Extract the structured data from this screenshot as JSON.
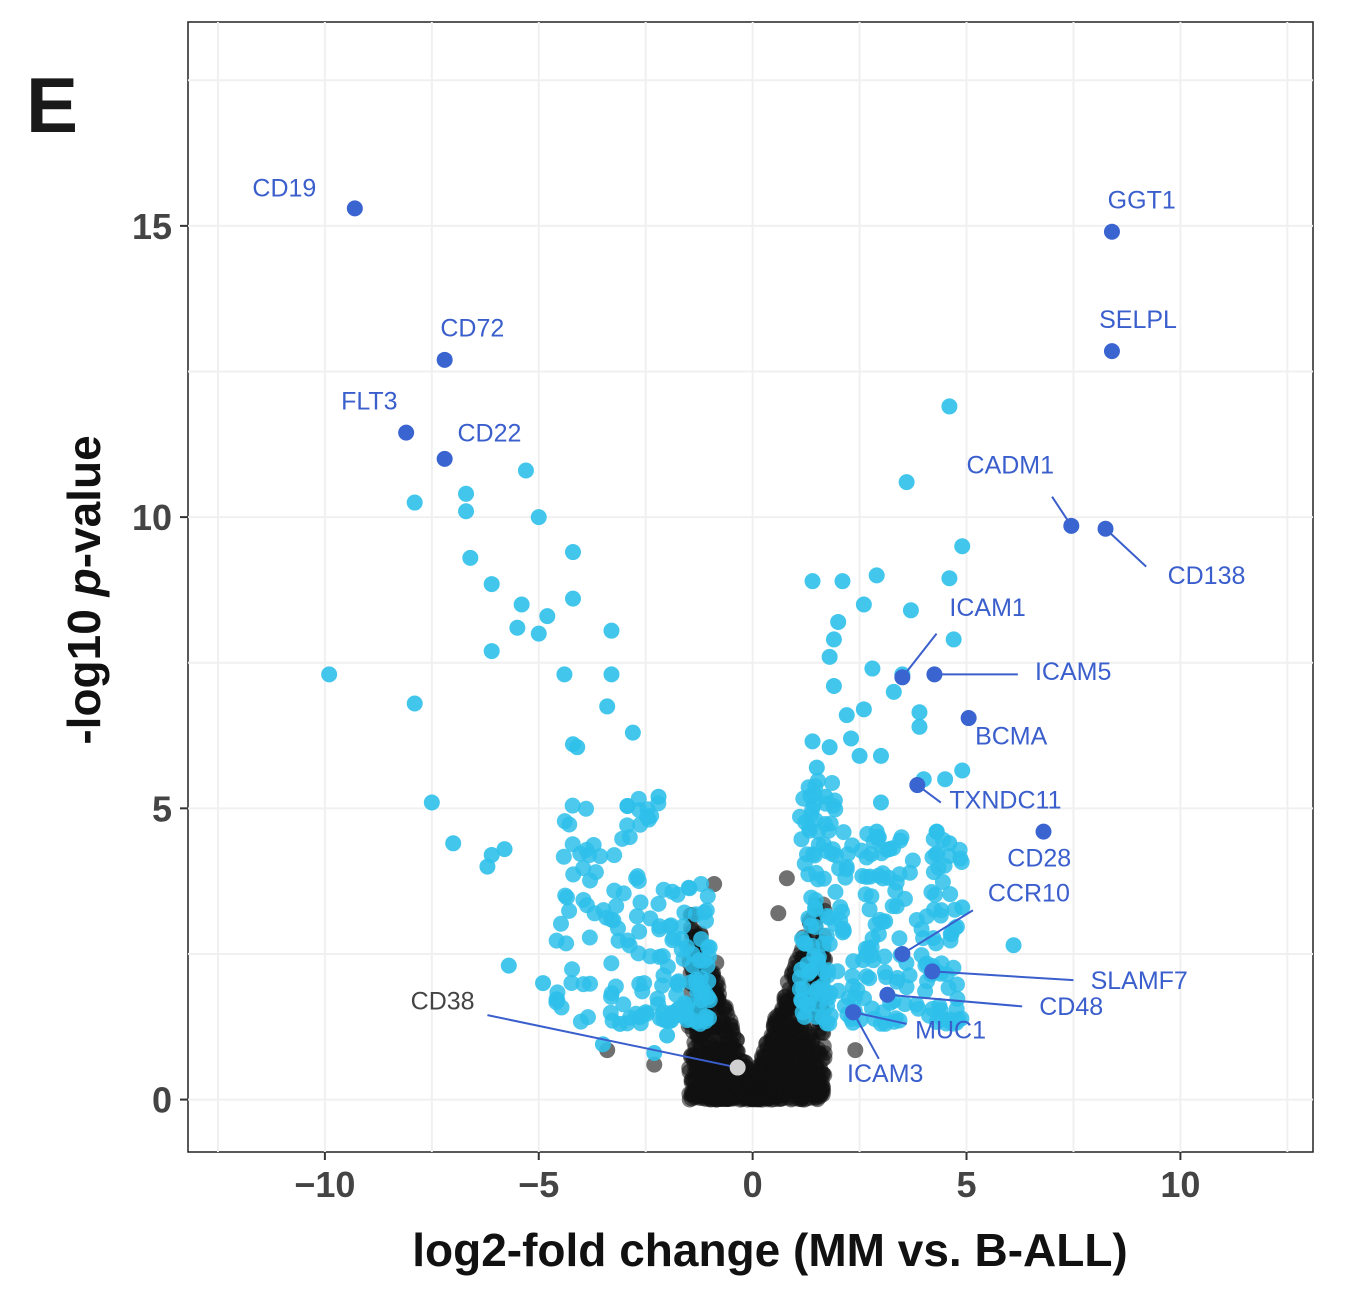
{
  "panel_label": "E",
  "colors": {
    "significant": "#2ec0ea",
    "highlight": "#3a64d0",
    "nonsignificant": "#111111",
    "cd38": "#d0d0d0",
    "label_highlight": "#3a5fcd",
    "label_cd38": "#444444",
    "grid": "#f0f0f0"
  },
  "chart_data": {
    "type": "scatter",
    "xlabel": "log2-fold change (MM vs. B-ALL)",
    "ylabel_parts": [
      "-log10 ",
      "p",
      "-value"
    ],
    "xlim": [
      -13.2,
      13.1
    ],
    "ylim": [
      -0.9,
      18.5
    ],
    "xticks": [
      -10,
      -5,
      0,
      5,
      10
    ],
    "xtick_labels": [
      "−10",
      "−5",
      "0",
      "5",
      "10"
    ],
    "yticks": [
      0,
      5,
      10,
      15
    ],
    "ytick_labels": [
      "0",
      "5",
      "10",
      "15"
    ],
    "grid": true,
    "labeled_genes": [
      {
        "name": "CD19",
        "x": -9.3,
        "y": 15.3,
        "label_x": -10.2,
        "label_y": 15.5,
        "anchor": "end",
        "leader": false
      },
      {
        "name": "CD72",
        "x": -7.2,
        "y": 12.7,
        "label_x": -7.3,
        "label_y": 13.1,
        "anchor": "start",
        "leader": false
      },
      {
        "name": "FLT3",
        "x": -8.1,
        "y": 11.45,
        "label_x": -8.3,
        "label_y": 11.85,
        "anchor": "end",
        "leader": false
      },
      {
        "name": "CD22",
        "x": -7.2,
        "y": 11.0,
        "label_x": -6.9,
        "label_y": 11.3,
        "anchor": "start",
        "leader": false
      },
      {
        "name": "GGT1",
        "x": 8.4,
        "y": 14.9,
        "label_x": 8.3,
        "label_y": 15.3,
        "anchor": "start",
        "leader": false
      },
      {
        "name": "SELPL",
        "x": 8.4,
        "y": 12.85,
        "label_x": 8.1,
        "label_y": 13.25,
        "anchor": "start",
        "leader": false
      },
      {
        "name": "CADM1",
        "x": 7.45,
        "y": 9.85,
        "label_x": 5.0,
        "label_y": 10.75,
        "anchor": "start",
        "leader": true,
        "leader_from": [
          7.0,
          10.35
        ]
      },
      {
        "name": "CD138",
        "x": 8.25,
        "y": 9.8,
        "label_x": 9.7,
        "label_y": 8.85,
        "anchor": "start",
        "leader": true,
        "leader_from": [
          9.2,
          9.15
        ]
      },
      {
        "name": "ICAM1",
        "x": 3.5,
        "y": 7.25,
        "label_x": 4.6,
        "label_y": 8.3,
        "anchor": "start",
        "leader": true,
        "leader_from": [
          4.3,
          8.0
        ]
      },
      {
        "name": "ICAM5",
        "x": 4.25,
        "y": 7.3,
        "label_x": 6.6,
        "label_y": 7.2,
        "anchor": "start",
        "leader": true,
        "leader_from": [
          6.2,
          7.3
        ]
      },
      {
        "name": "BCMA",
        "x": 5.05,
        "y": 6.55,
        "label_x": 5.2,
        "label_y": 6.1,
        "anchor": "start",
        "leader": false
      },
      {
        "name": "TXNDC11",
        "x": 3.85,
        "y": 5.4,
        "label_x": 4.6,
        "label_y": 5.0,
        "anchor": "start",
        "leader": true,
        "leader_from": [
          4.4,
          5.1
        ]
      },
      {
        "name": "CD28",
        "x": 6.8,
        "y": 4.6,
        "label_x": 6.7,
        "label_y": 4.0,
        "anchor": "middle",
        "leader": false
      },
      {
        "name": "CCR10",
        "x": 3.5,
        "y": 2.5,
        "label_x": 5.5,
        "label_y": 3.4,
        "anchor": "start",
        "leader": true,
        "leader_from": [
          5.15,
          3.25
        ]
      },
      {
        "name": "SLAMF7",
        "x": 4.2,
        "y": 2.2,
        "label_x": 7.9,
        "label_y": 1.9,
        "anchor": "start",
        "leader": true,
        "leader_from": [
          7.5,
          2.05
        ]
      },
      {
        "name": "CD48",
        "x": 3.15,
        "y": 1.8,
        "label_x": 6.7,
        "label_y": 1.45,
        "anchor": "start",
        "leader": true,
        "leader_from": [
          6.3,
          1.6
        ]
      },
      {
        "name": "MUC1",
        "x": 2.35,
        "y": 1.5,
        "label_x": 3.8,
        "label_y": 1.05,
        "anchor": "start",
        "leader": true,
        "leader_from": [
          3.6,
          1.3
        ]
      },
      {
        "name": "ICAM3",
        "x": 2.35,
        "y": 1.5,
        "label_x": 3.1,
        "label_y": 0.3,
        "anchor": "middle",
        "leader": true,
        "leader_from": [
          2.95,
          0.7
        ]
      },
      {
        "name": "CD38",
        "x": -0.35,
        "y": 0.55,
        "label_x": -6.5,
        "label_y": 1.55,
        "anchor": "end",
        "leader": true,
        "leader_from": [
          -6.2,
          1.45
        ]
      }
    ],
    "significant_points": [
      [
        -9.9,
        7.3
      ],
      [
        -7.9,
        10.25
      ],
      [
        -7.9,
        6.8
      ],
      [
        -6.7,
        10.4
      ],
      [
        -6.7,
        10.1
      ],
      [
        -6.6,
        9.3
      ],
      [
        -6.1,
        8.85
      ],
      [
        -6.1,
        7.7
      ],
      [
        -5.4,
        8.5
      ],
      [
        -5.3,
        10.8
      ],
      [
        -5.5,
        8.1
      ],
      [
        -5.0,
        10.0
      ],
      [
        -5.0,
        8.0
      ],
      [
        -4.8,
        8.3
      ],
      [
        -4.4,
        7.3
      ],
      [
        -4.2,
        9.4
      ],
      [
        -4.2,
        8.6
      ],
      [
        -4.2,
        6.1
      ],
      [
        -4.1,
        6.05
      ],
      [
        -3.3,
        8.05
      ],
      [
        -3.3,
        7.3
      ],
      [
        -3.4,
        6.75
      ],
      [
        -2.8,
        6.3
      ],
      [
        -2.2,
        5.2
      ],
      [
        -7.5,
        5.1
      ],
      [
        -7.0,
        4.4
      ],
      [
        -6.2,
        4.0
      ],
      [
        -6.1,
        4.2
      ],
      [
        -5.8,
        4.3
      ],
      [
        -5.7,
        2.3
      ],
      [
        -4.9,
        2.0
      ],
      [
        -2.3,
        0.8
      ],
      [
        -2.0,
        1.1
      ],
      [
        -2.5,
        1.5
      ],
      [
        -3.1,
        1.3
      ],
      [
        -3.5,
        0.95
      ],
      [
        2.6,
        8.5
      ],
      [
        2.9,
        9.0
      ],
      [
        3.7,
        8.4
      ],
      [
        4.6,
        11.9
      ],
      [
        3.6,
        10.6
      ],
      [
        4.9,
        9.5
      ],
      [
        4.6,
        8.95
      ],
      [
        1.4,
        8.9
      ],
      [
        2.1,
        8.9
      ],
      [
        2.0,
        8.2
      ],
      [
        1.9,
        7.9
      ],
      [
        1.8,
        7.6
      ],
      [
        1.9,
        7.1
      ],
      [
        2.8,
        7.4
      ],
      [
        3.5,
        7.3
      ],
      [
        3.3,
        7.0
      ],
      [
        4.7,
        7.9
      ],
      [
        3.9,
        6.65
      ],
      [
        3.9,
        6.4
      ],
      [
        2.3,
        6.2
      ],
      [
        1.8,
        6.05
      ],
      [
        1.4,
        6.15
      ],
      [
        2.5,
        5.9
      ],
      [
        3.0,
        5.9
      ],
      [
        1.7,
        5.2
      ],
      [
        3.0,
        5.1
      ],
      [
        4.5,
        5.5
      ],
      [
        4.9,
        5.65
      ],
      [
        4.3,
        4.6
      ],
      [
        4.6,
        4.4
      ],
      [
        6.1,
        2.65
      ],
      [
        4.9,
        3.3
      ],
      [
        2.6,
        6.7
      ],
      [
        2.2,
        6.6
      ],
      [
        1.5,
        5.7
      ],
      [
        4.0,
        5.5
      ],
      [
        3.2,
        4.3
      ],
      [
        2.9,
        4.6
      ]
    ]
  }
}
